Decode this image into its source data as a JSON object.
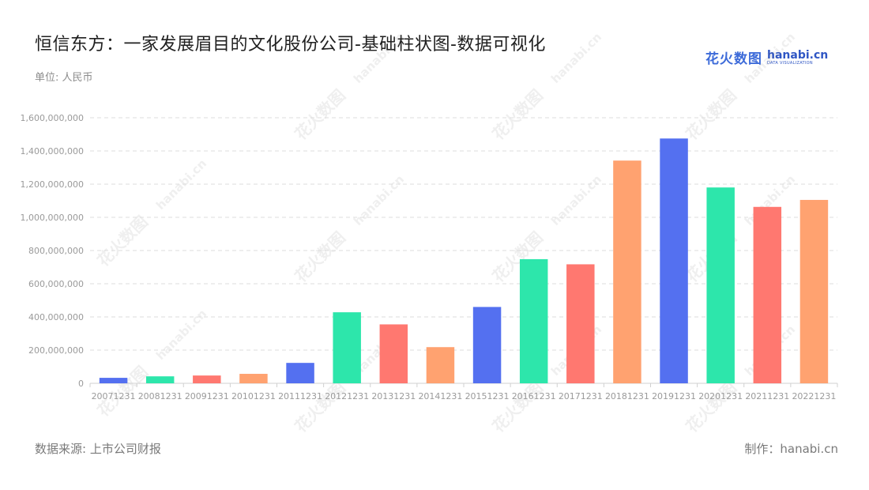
{
  "header": {
    "title": "恒信东方：一家发展眉目的文化股份公司-基础柱状图-数据可视化",
    "unit": "单位: 人民币"
  },
  "logo": {
    "cn": "花火数图",
    "en": "hanabi.cn",
    "sub": "DATA VISUALIZATION",
    "color": "#3d6bd9"
  },
  "footer": {
    "source": "数据来源: 上市公司财报",
    "credit": "制作：hanabi.cn"
  },
  "chart_data": {
    "type": "bar",
    "categories": [
      "20071231",
      "20081231",
      "20091231",
      "20101231",
      "20111231",
      "20121231",
      "20131231",
      "20141231",
      "20151231",
      "20161231",
      "20171231",
      "20181231",
      "20191231",
      "20201231",
      "20211231",
      "20221231"
    ],
    "values": [
      33000000,
      42000000,
      47000000,
      57000000,
      123000000,
      428000000,
      355000000,
      218000000,
      460000000,
      748000000,
      717000000,
      1342000000,
      1475000000,
      1180000000,
      1063000000,
      1105000000
    ],
    "colors": [
      "#5470f0",
      "#2de6ab",
      "#ff7870",
      "#ffa270",
      "#5470f0",
      "#2de6ab",
      "#ff7870",
      "#ffa270",
      "#5470f0",
      "#2de6ab",
      "#ff7870",
      "#ffa270",
      "#5470f0",
      "#2de6ab",
      "#ff7870",
      "#ffa270"
    ],
    "yticks": [
      "0",
      "200,000,000",
      "400,000,000",
      "600,000,000",
      "800,000,000",
      "1,000,000,000",
      "1,200,000,000",
      "1,400,000,000",
      "1,600,000,000"
    ],
    "ylim": [
      0,
      1600000000
    ],
    "grid": true,
    "xlabel": "",
    "ylabel": ""
  },
  "watermark": {
    "text": "花火数图",
    "sub": "hanabi.cn"
  }
}
